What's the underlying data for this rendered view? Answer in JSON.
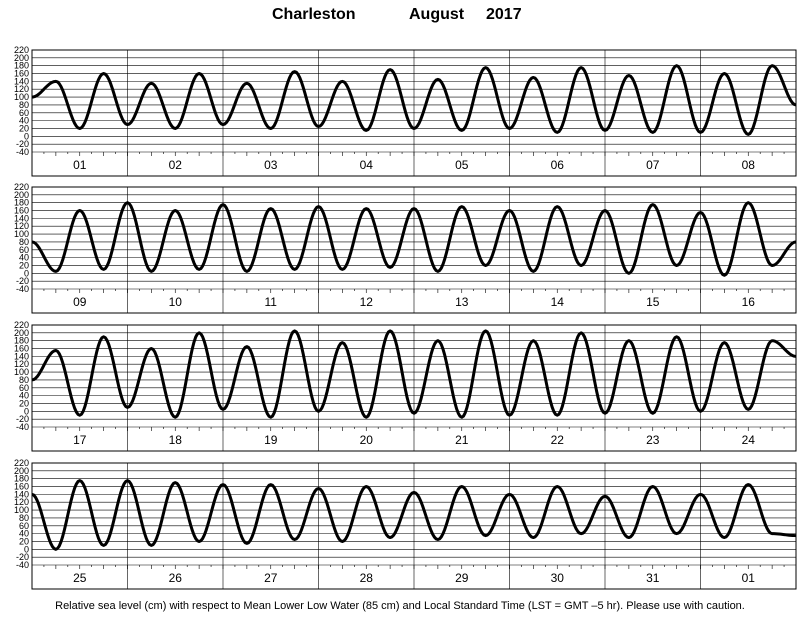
{
  "header": {
    "location": "Charleston",
    "month": "August",
    "year": "2017"
  },
  "footer": "Relative sea level (cm) with respect to Mean Lower Low Water (85 cm) and Local Standard Time (LST = GMT –5 hr). Please use with caution.",
  "chart_data": {
    "type": "line",
    "ylim": [
      -40,
      220
    ],
    "yticks": [
      -40,
      -20,
      0,
      20,
      40,
      60,
      80,
      100,
      120,
      140,
      160,
      180,
      200,
      220
    ],
    "grid": true,
    "line_color": "#000000",
    "panels": [
      {
        "day_labels": [
          "01",
          "02",
          "03",
          "04",
          "05",
          "06",
          "07",
          "08"
        ],
        "x": [
          0,
          0.25,
          0.5,
          0.75,
          1,
          1.25,
          1.5,
          1.75,
          2,
          2.25,
          2.5,
          2.75,
          3,
          3.25,
          3.5,
          3.75,
          4,
          4.25,
          4.5,
          4.75,
          5,
          5.25,
          5.5,
          5.75,
          6,
          6.25,
          6.5,
          6.75,
          7,
          7.25,
          7.5,
          7.75,
          8
        ],
        "y": [
          100,
          140,
          20,
          160,
          30,
          135,
          20,
          160,
          30,
          135,
          20,
          165,
          25,
          140,
          15,
          170,
          20,
          145,
          15,
          175,
          20,
          150,
          10,
          175,
          15,
          155,
          10,
          180,
          10,
          160,
          5,
          180,
          80
        ]
      },
      {
        "day_labels": [
          "09",
          "10",
          "11",
          "12",
          "13",
          "14",
          "15",
          "16"
        ],
        "x": [
          0,
          0.25,
          0.5,
          0.75,
          1,
          1.25,
          1.5,
          1.75,
          2,
          2.25,
          2.5,
          2.75,
          3,
          3.25,
          3.5,
          3.75,
          4,
          4.25,
          4.5,
          4.75,
          5,
          5.25,
          5.5,
          5.75,
          6,
          6.25,
          6.5,
          6.75,
          7,
          7.25,
          7.5,
          7.75,
          8
        ],
        "y": [
          80,
          5,
          160,
          10,
          180,
          5,
          160,
          10,
          175,
          5,
          165,
          10,
          170,
          10,
          165,
          15,
          165,
          5,
          170,
          20,
          160,
          5,
          170,
          20,
          160,
          0,
          175,
          20,
          155,
          -5,
          180,
          20,
          80
        ]
      },
      {
        "day_labels": [
          "17",
          "18",
          "19",
          "20",
          "21",
          "22",
          "23",
          "24"
        ],
        "x": [
          0,
          0.25,
          0.5,
          0.75,
          1,
          1.25,
          1.5,
          1.75,
          2,
          2.25,
          2.5,
          2.75,
          3,
          3.25,
          3.5,
          3.75,
          4,
          4.25,
          4.5,
          4.75,
          5,
          5.25,
          5.5,
          5.75,
          6,
          6.25,
          6.5,
          6.75,
          7,
          7.25,
          7.5,
          7.75,
          8
        ],
        "y": [
          80,
          155,
          -10,
          190,
          10,
          160,
          -15,
          200,
          5,
          165,
          -15,
          205,
          0,
          175,
          -15,
          205,
          -5,
          180,
          -15,
          205,
          -10,
          180,
          -10,
          200,
          -5,
          180,
          -5,
          190,
          0,
          175,
          5,
          180,
          140
        ]
      },
      {
        "day_labels": [
          "25",
          "26",
          "27",
          "28",
          "29",
          "30",
          "31",
          "01"
        ],
        "x": [
          0,
          0.25,
          0.5,
          0.75,
          1,
          1.25,
          1.5,
          1.75,
          2,
          2.25,
          2.5,
          2.75,
          3,
          3.25,
          3.5,
          3.75,
          4,
          4.25,
          4.5,
          4.75,
          5,
          5.25,
          5.5,
          5.75,
          6,
          6.25,
          6.5,
          6.75,
          7,
          7.25,
          7.5,
          7.75,
          8
        ],
        "y": [
          140,
          0,
          175,
          10,
          175,
          10,
          170,
          20,
          165,
          15,
          165,
          25,
          155,
          20,
          160,
          30,
          145,
          25,
          160,
          35,
          140,
          30,
          160,
          40,
          135,
          30,
          160,
          40,
          140,
          30,
          165,
          40,
          35
        ]
      }
    ]
  }
}
